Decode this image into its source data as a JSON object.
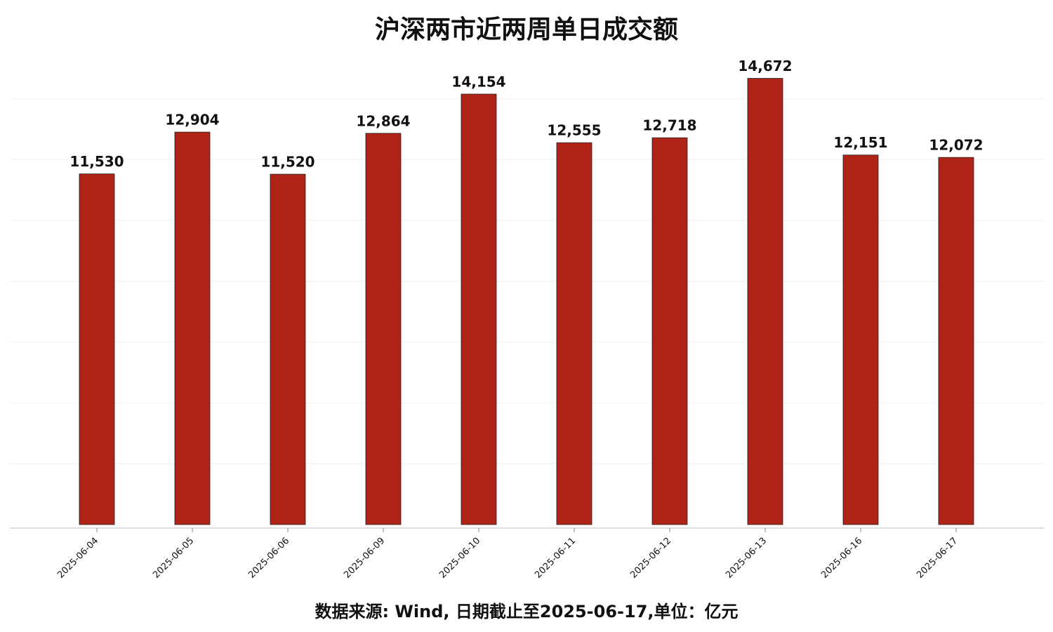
{
  "chart_data": {
    "type": "bar",
    "title": "沪深两市近两周单日成交额",
    "source": "数据来源: Wind, 日期截止至2025-06-17,单位：亿元",
    "categories": [
      "2025-06-04",
      "2025-06-05",
      "2025-06-06",
      "2025-06-09",
      "2025-06-10",
      "2025-06-11",
      "2025-06-12",
      "2025-06-13",
      "2025-06-16",
      "2025-06-17"
    ],
    "values": [
      11530,
      12904,
      11520,
      12864,
      14154,
      12555,
      12718,
      14672,
      12151,
      12072
    ],
    "value_labels": [
      "11,530",
      "12,904",
      "11,520",
      "12,864",
      "14,154",
      "12,555",
      "12,718",
      "14,672",
      "12,151",
      "12,072"
    ],
    "color": "#b02418",
    "ylim": [
      0,
      15400
    ],
    "yticks": [
      2000,
      4000,
      6000,
      8000,
      10000,
      12000,
      14000
    ],
    "grid": true
  }
}
